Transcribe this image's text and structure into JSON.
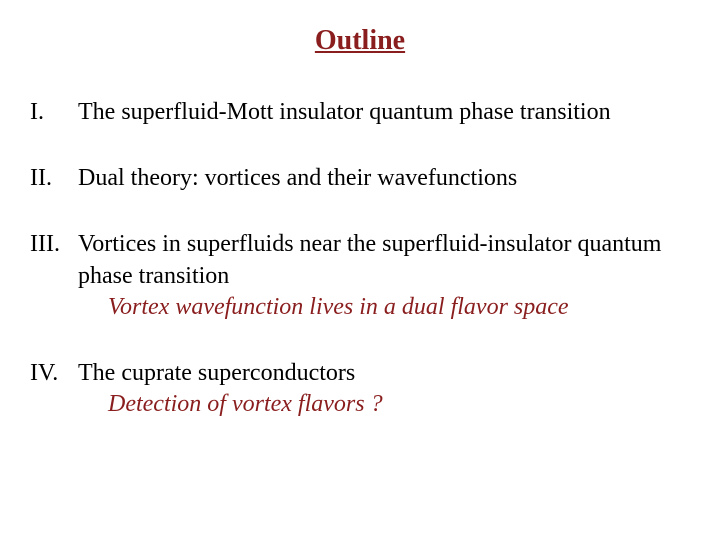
{
  "title": {
    "text": "Outline",
    "color": "#8a1e1e",
    "fontsize": 28
  },
  "body": {
    "color": "#000000",
    "fontsize": 24
  },
  "subtitle": {
    "color": "#8a1e1e"
  },
  "items": [
    {
      "roman": "I.",
      "text": "The superfluid-Mott insulator quantum phase transition",
      "subtitle": ""
    },
    {
      "roman": "II.",
      "text": "Dual theory: vortices and their wavefunctions",
      "subtitle": ""
    },
    {
      "roman": "III.",
      "text": "Vortices in superfluids near the superfluid-insulator quantum phase transition",
      "subtitle": "Vortex wavefunction lives in a dual flavor space"
    },
    {
      "roman": "IV.",
      "text": "The cuprate superconductors",
      "subtitle": "Detection of vortex flavors ?"
    }
  ]
}
